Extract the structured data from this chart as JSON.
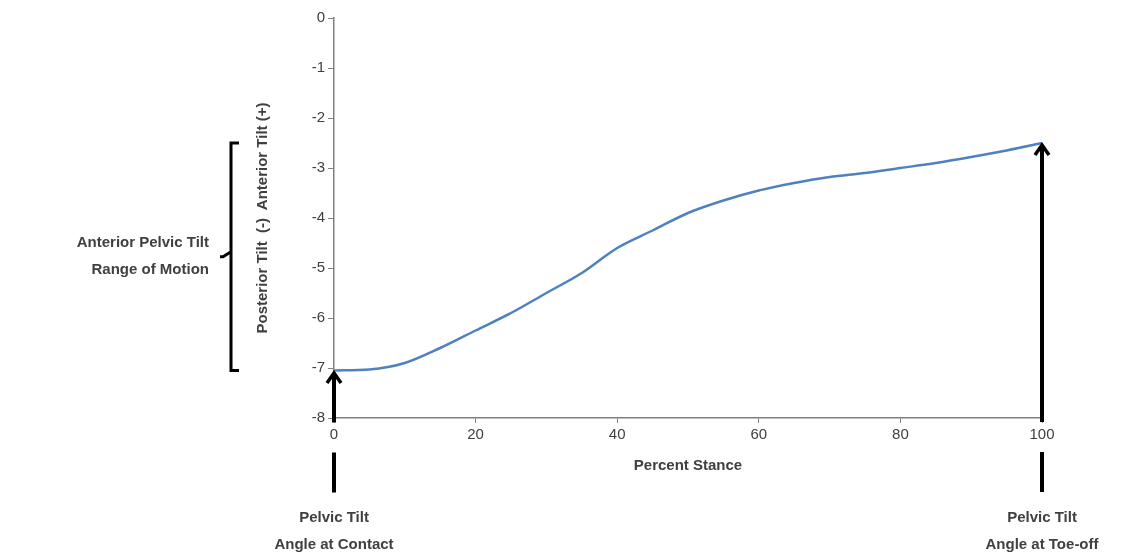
{
  "chart_data": {
    "type": "line",
    "xlabel": "Percent Stance",
    "ylabel": "Posterior Tilt  (-)  Anterior Tilt (+)",
    "x": [
      0,
      5,
      10,
      15,
      20,
      25,
      30,
      35,
      40,
      45,
      50,
      55,
      60,
      65,
      70,
      75,
      80,
      85,
      90,
      95,
      100
    ],
    "series": [
      {
        "color": "#4f81bd",
        "values": [
          -7.05,
          -7.03,
          -6.9,
          -6.6,
          -6.25,
          -5.9,
          -5.5,
          -5.1,
          -4.6,
          -4.25,
          -3.9,
          -3.65,
          -3.45,
          -3.3,
          -3.18,
          -3.1,
          -3.0,
          -2.9,
          -2.78,
          -2.65,
          -2.5
        ]
      }
    ],
    "xlim": [
      0,
      100
    ],
    "xticks": [
      0,
      20,
      40,
      60,
      80,
      100
    ],
    "ylim": [
      -8,
      0
    ],
    "yticks": [
      -8,
      -7,
      -6,
      -5,
      -4,
      -3,
      -2,
      -1,
      0
    ],
    "grid": false,
    "legend": false,
    "marker": "none",
    "line_style": "solid",
    "annotations": [
      "Anterior Pelvic Tilt\nRange of Motion",
      "Pelvic Tilt\nAngle at Contact",
      "Pelvic Tilt\nAngle at Toe-off"
    ]
  }
}
